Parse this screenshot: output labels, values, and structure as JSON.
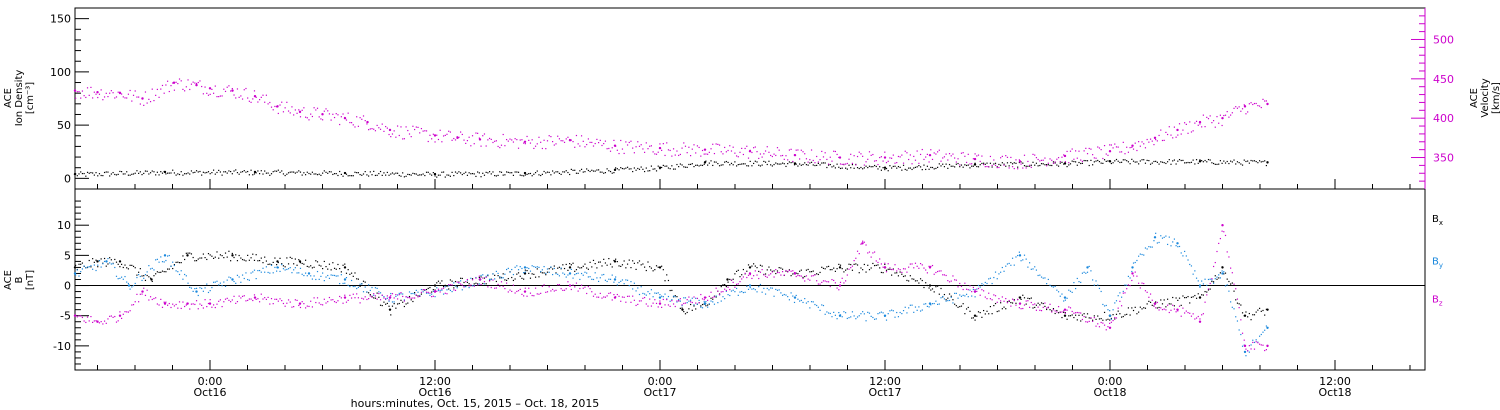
{
  "chart_data": [
    {
      "type": "scatter",
      "panel": "top",
      "ylabel_left": [
        "ACE",
        "Ion Density",
        "[cm⁻³]"
      ],
      "ylabel_right": [
        "ACE",
        "Velocity",
        "[km/s]"
      ],
      "ylim_left": [
        -10,
        160
      ],
      "yticks_left": [
        0,
        50,
        100,
        150
      ],
      "ylim_right": [
        310,
        540
      ],
      "yticks_right": [
        350,
        400,
        450,
        500
      ],
      "grid": false,
      "series": [
        {
          "name": "Ion Density",
          "axis": "left",
          "color": "#000000",
          "x": [
            15.7,
            15.9,
            16.1,
            16.3,
            16.5,
            16.7,
            16.9,
            17.0,
            17.1,
            17.3,
            17.5,
            17.7,
            17.9,
            18.0,
            18.2,
            18.35
          ],
          "y": [
            4,
            6,
            6,
            5,
            4,
            5,
            8,
            10,
            15,
            14,
            10,
            13,
            14,
            16,
            16,
            15
          ]
        },
        {
          "name": "Velocity",
          "axis": "right",
          "color": "#cc00cc",
          "x": [
            15.7,
            15.75,
            15.8,
            15.85,
            15.92,
            15.97,
            16.0,
            16.05,
            16.1,
            16.15,
            16.2,
            16.25,
            16.3,
            16.35,
            16.4,
            16.5,
            16.55,
            16.6,
            16.7,
            16.8,
            16.9,
            17.0,
            17.1,
            17.2,
            17.3,
            17.4,
            17.5,
            17.6,
            17.7,
            17.8,
            17.9,
            18.0,
            18.05,
            18.1,
            18.15,
            18.2,
            18.25,
            18.3,
            18.35
          ],
          "y": [
            435,
            433,
            432,
            425,
            445,
            442,
            438,
            435,
            428,
            415,
            408,
            405,
            400,
            395,
            385,
            378,
            375,
            373,
            370,
            372,
            365,
            362,
            360,
            358,
            353,
            350,
            350,
            353,
            348,
            345,
            352,
            358,
            365,
            375,
            385,
            395,
            400,
            415,
            418
          ]
        }
      ]
    },
    {
      "type": "scatter",
      "panel": "bottom",
      "ylabel": [
        "ACE",
        "B",
        "[nT]"
      ],
      "ylim": [
        -14,
        16
      ],
      "yticks": [
        -10,
        -5,
        0,
        5,
        10
      ],
      "zero_line": true,
      "grid": false,
      "legend_position": "right",
      "xlabel": "hours:minutes, Oct. 15, 2015 – Oct. 18, 2015",
      "xlim": [
        15.7,
        18.7
      ],
      "xticks": [
        {
          "x": 16.0,
          "line1": "0:00",
          "line2": "Oct16"
        },
        {
          "x": 16.5,
          "line1": "12:00",
          "line2": "Oct16"
        },
        {
          "x": 17.0,
          "line1": "0:00",
          "line2": "Oct17"
        },
        {
          "x": 17.5,
          "line1": "12:00",
          "line2": "Oct17"
        },
        {
          "x": 18.0,
          "line1": "0:00",
          "line2": "Oct18"
        },
        {
          "x": 18.5,
          "line1": "12:00",
          "line2": "Oct18"
        }
      ],
      "series": [
        {
          "name": "Bx",
          "color": "#000000",
          "x": [
            15.7,
            15.75,
            15.8,
            15.87,
            15.95,
            16.05,
            16.15,
            16.2,
            16.3,
            16.4,
            16.5,
            16.6,
            16.7,
            16.8,
            16.9,
            17.0,
            17.05,
            17.1,
            17.15,
            17.2,
            17.3,
            17.4,
            17.5,
            17.6,
            17.7,
            17.8,
            17.9,
            18.0,
            18.1,
            18.2,
            18.25,
            18.3,
            18.35
          ],
          "y": [
            3,
            4,
            4,
            1,
            5,
            5,
            4,
            4,
            3,
            -4,
            0,
            1,
            2,
            3,
            4,
            3,
            -4,
            -3,
            1,
            3,
            2,
            3,
            3,
            0,
            -5,
            -2,
            -5,
            -5,
            -3,
            -2,
            3,
            -5,
            -4
          ]
        },
        {
          "name": "By",
          "color": "#1a88dd",
          "x": [
            15.7,
            15.77,
            15.82,
            15.9,
            15.97,
            16.05,
            16.15,
            16.22,
            16.3,
            16.4,
            16.5,
            16.6,
            16.7,
            16.8,
            16.9,
            17.0,
            17.1,
            17.2,
            17.3,
            17.4,
            17.5,
            17.6,
            17.7,
            17.8,
            17.9,
            17.95,
            18.0,
            18.05,
            18.1,
            18.15,
            18.2,
            18.25,
            18.3,
            18.35
          ],
          "y": [
            2,
            4,
            0,
            5,
            -1,
            1,
            3,
            2,
            1,
            -2,
            -1,
            1,
            3,
            2,
            1,
            -2,
            -3,
            0,
            -2,
            -5,
            -5,
            -3,
            -1,
            5,
            -2,
            3,
            -5,
            3,
            8,
            7,
            0,
            2,
            -11,
            -7
          ]
        },
        {
          "name": "Bz",
          "color": "#cc00cc",
          "x": [
            15.7,
            15.75,
            15.8,
            15.85,
            15.9,
            15.95,
            16.0,
            16.1,
            16.2,
            16.3,
            16.4,
            16.5,
            16.6,
            16.7,
            16.8,
            16.9,
            17.0,
            17.1,
            17.2,
            17.3,
            17.4,
            17.45,
            17.5,
            17.6,
            17.7,
            17.8,
            17.9,
            18.0,
            18.05,
            18.1,
            18.15,
            18.2,
            18.25,
            18.3,
            18.35
          ],
          "y": [
            -5,
            -6,
            -5,
            -1,
            -3,
            -3,
            -3,
            -2,
            -3,
            -2,
            -2,
            -1,
            1,
            -1,
            0,
            -2,
            -3,
            -2,
            2,
            2,
            0,
            7,
            3,
            3,
            -1,
            -3,
            -4,
            -7,
            2,
            -3,
            -4,
            -6,
            10,
            -10,
            -10
          ]
        }
      ]
    }
  ]
}
